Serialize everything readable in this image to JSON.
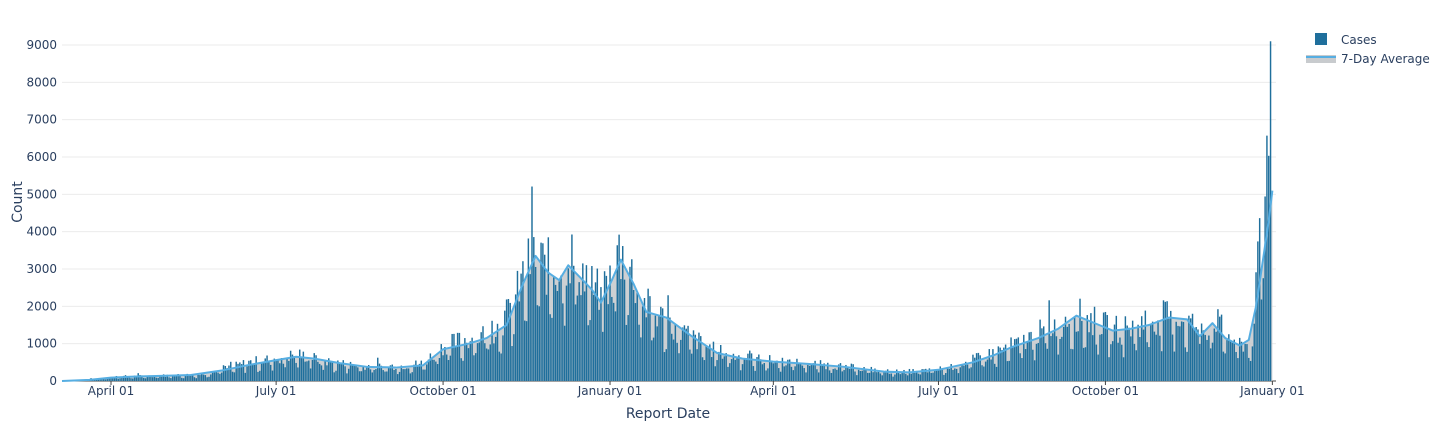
{
  "chart_data": {
    "type": "bar",
    "title": "",
    "xlabel": "Report Date",
    "ylabel": "Count",
    "ylim": [
      0,
      9000
    ],
    "yticks": [
      0,
      1000,
      2000,
      3000,
      4000,
      5000,
      6000,
      7000,
      8000,
      9000
    ],
    "xrange": [
      "2020-03-05",
      "2022-01-03"
    ],
    "xticks": [
      {
        "date": "2020-04-01",
        "label": "April 01"
      },
      {
        "date": "2020-07-01",
        "label": "July 01"
      },
      {
        "date": "2020-10-01",
        "label": "October 01"
      },
      {
        "date": "2021-01-01",
        "label": "January 01"
      },
      {
        "date": "2021-04-01",
        "label": "April 01"
      },
      {
        "date": "2021-07-01",
        "label": "July 01"
      },
      {
        "date": "2021-10-01",
        "label": "October 01"
      },
      {
        "date": "2022-01-01",
        "label": "January 01"
      }
    ],
    "grid": true,
    "legend_position": "top-right",
    "series": [
      {
        "name": "Cases",
        "kind": "bar",
        "color": "#1f6f9c",
        "points": [
          [
            "2020-03-10",
            10
          ],
          [
            "2020-03-20",
            40
          ],
          [
            "2020-03-28",
            80
          ],
          [
            "2020-04-05",
            120
          ],
          [
            "2020-04-20",
            130
          ],
          [
            "2020-05-05",
            150
          ],
          [
            "2020-05-20",
            170
          ],
          [
            "2020-05-28",
            250
          ],
          [
            "2020-06-05",
            350
          ],
          [
            "2020-06-15",
            480
          ],
          [
            "2020-06-25",
            560
          ],
          [
            "2020-07-05",
            620
          ],
          [
            "2020-07-12",
            700
          ],
          [
            "2020-07-20",
            620
          ],
          [
            "2020-07-28",
            520
          ],
          [
            "2020-08-10",
            430
          ],
          [
            "2020-08-25",
            380
          ],
          [
            "2020-09-10",
            400
          ],
          [
            "2020-09-20",
            470
          ],
          [
            "2020-10-01",
            900
          ],
          [
            "2020-10-10",
            1050
          ],
          [
            "2020-10-20",
            1150
          ],
          [
            "2020-10-30",
            1350
          ],
          [
            "2020-11-08",
            1900
          ],
          [
            "2020-11-14",
            2700
          ],
          [
            "2020-11-20",
            3300
          ],
          [
            "2020-11-26",
            3000
          ],
          [
            "2020-12-03",
            2900
          ],
          [
            "2020-12-10",
            3300
          ],
          [
            "2020-12-18",
            2800
          ],
          [
            "2020-12-24",
            2300
          ],
          [
            "2021-01-01",
            2600
          ],
          [
            "2021-01-06",
            3400
          ],
          [
            "2021-01-12",
            2900
          ],
          [
            "2021-01-20",
            2000
          ],
          [
            "2021-01-28",
            1700
          ],
          [
            "2021-02-10",
            1300
          ],
          [
            "2021-02-25",
            850
          ],
          [
            "2021-03-10",
            650
          ],
          [
            "2021-03-25",
            560
          ],
          [
            "2021-04-10",
            500
          ],
          [
            "2021-04-25",
            440
          ],
          [
            "2021-05-10",
            380
          ],
          [
            "2021-05-25",
            300
          ],
          [
            "2021-06-05",
            240
          ],
          [
            "2021-06-15",
            250
          ],
          [
            "2021-06-25",
            280
          ],
          [
            "2021-07-05",
            330
          ],
          [
            "2021-07-15",
            480
          ],
          [
            "2021-07-25",
            620
          ],
          [
            "2021-08-05",
            820
          ],
          [
            "2021-08-15",
            1000
          ],
          [
            "2021-08-25",
            1250
          ],
          [
            "2021-09-05",
            1500
          ],
          [
            "2021-09-15",
            1750
          ],
          [
            "2021-09-25",
            1550
          ],
          [
            "2021-10-05",
            1350
          ],
          [
            "2021-10-15",
            1400
          ],
          [
            "2021-10-25",
            1600
          ],
          [
            "2021-11-05",
            1700
          ],
          [
            "2021-11-15",
            1600
          ],
          [
            "2021-11-25",
            1300
          ],
          [
            "2021-11-30",
            1700
          ],
          [
            "2021-12-05",
            1300
          ],
          [
            "2021-12-12",
            1000
          ],
          [
            "2021-12-18",
            950
          ],
          [
            "2021-12-22",
            1200
          ],
          [
            "2021-12-24",
            3300
          ],
          [
            "2021-12-26",
            3800
          ],
          [
            "2021-12-28",
            4700
          ],
          [
            "2021-12-30",
            7200
          ],
          [
            "2021-12-31",
            9100
          ]
        ]
      },
      {
        "name": "7-Day Average",
        "kind": "area",
        "color": "#56aee2",
        "fill": "#c8cbce",
        "points": [
          [
            "2020-03-05",
            0
          ],
          [
            "2020-03-20",
            30
          ],
          [
            "2020-04-01",
            90
          ],
          [
            "2020-04-15",
            120
          ],
          [
            "2020-05-01",
            140
          ],
          [
            "2020-05-15",
            160
          ],
          [
            "2020-06-01",
            280
          ],
          [
            "2020-06-15",
            420
          ],
          [
            "2020-07-01",
            560
          ],
          [
            "2020-07-12",
            650
          ],
          [
            "2020-07-22",
            600
          ],
          [
            "2020-08-05",
            480
          ],
          [
            "2020-08-20",
            380
          ],
          [
            "2020-09-05",
            360
          ],
          [
            "2020-09-20",
            420
          ],
          [
            "2020-10-01",
            850
          ],
          [
            "2020-10-15",
            1000
          ],
          [
            "2020-10-25",
            1150
          ],
          [
            "2020-11-05",
            1500
          ],
          [
            "2020-11-14",
            2600
          ],
          [
            "2020-11-21",
            3350
          ],
          [
            "2020-11-28",
            2900
          ],
          [
            "2020-12-04",
            2700
          ],
          [
            "2020-12-09",
            3100
          ],
          [
            "2020-12-15",
            2800
          ],
          [
            "2020-12-22",
            2450
          ],
          [
            "2020-12-27",
            2100
          ],
          [
            "2021-01-02",
            2700
          ],
          [
            "2021-01-07",
            3250
          ],
          [
            "2021-01-14",
            2600
          ],
          [
            "2021-01-21",
            1850
          ],
          [
            "2021-02-01",
            1700
          ],
          [
            "2021-02-15",
            1200
          ],
          [
            "2021-03-01",
            750
          ],
          [
            "2021-03-15",
            600
          ],
          [
            "2021-04-01",
            520
          ],
          [
            "2021-04-20",
            460
          ],
          [
            "2021-05-10",
            380
          ],
          [
            "2021-06-01",
            250
          ],
          [
            "2021-06-15",
            230
          ],
          [
            "2021-07-01",
            300
          ],
          [
            "2021-07-20",
            500
          ],
          [
            "2021-08-01",
            700
          ],
          [
            "2021-08-10",
            900
          ],
          [
            "2021-08-25",
            1150
          ],
          [
            "2021-09-05",
            1400
          ],
          [
            "2021-09-15",
            1750
          ],
          [
            "2021-09-25",
            1550
          ],
          [
            "2021-10-05",
            1350
          ],
          [
            "2021-10-15",
            1400
          ],
          [
            "2021-10-25",
            1500
          ],
          [
            "2021-11-05",
            1700
          ],
          [
            "2021-11-15",
            1650
          ],
          [
            "2021-11-22",
            1200
          ],
          [
            "2021-11-29",
            1550
          ],
          [
            "2021-12-06",
            1150
          ],
          [
            "2021-12-14",
            950
          ],
          [
            "2021-12-19",
            1100
          ],
          [
            "2021-12-23",
            2000
          ],
          [
            "2021-12-27",
            3300
          ],
          [
            "2021-12-30",
            4300
          ],
          [
            "2022-01-01",
            5100
          ]
        ]
      }
    ]
  }
}
